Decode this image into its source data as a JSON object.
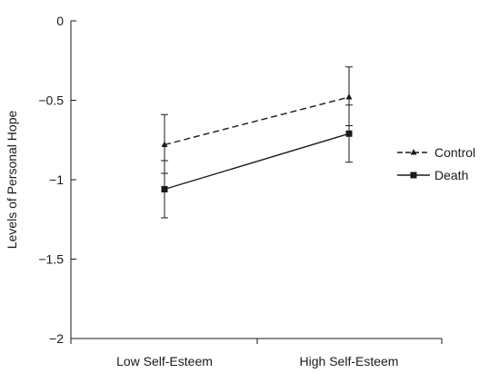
{
  "chart_data": {
    "type": "line",
    "title": "",
    "xlabel": "",
    "ylabel": "Levels of Personal Hope",
    "categories": [
      "Low Self-Esteem",
      "High Self-Esteem"
    ],
    "ylim": [
      -2,
      0
    ],
    "yticks": [
      0,
      -0.5,
      -1,
      -1.5,
      -2
    ],
    "ytick_labels": [
      "0",
      "−0.5",
      "−1",
      "−1.5",
      "−2"
    ],
    "grid": false,
    "legend_position": "right",
    "series": [
      {
        "name": "Control",
        "values": [
          -0.78,
          -0.48
        ],
        "error_low": [
          -0.96,
          -0.66
        ],
        "error_high": [
          -0.59,
          -0.29
        ],
        "line_style": "dashed",
        "marker": "triangle",
        "color": "#1a1a1a"
      },
      {
        "name": "Death",
        "values": [
          -1.06,
          -0.71
        ],
        "error_low": [
          -1.24,
          -0.89
        ],
        "error_high": [
          -0.88,
          -0.53
        ],
        "line_style": "solid",
        "marker": "square",
        "color": "#1a1a1a"
      }
    ]
  }
}
